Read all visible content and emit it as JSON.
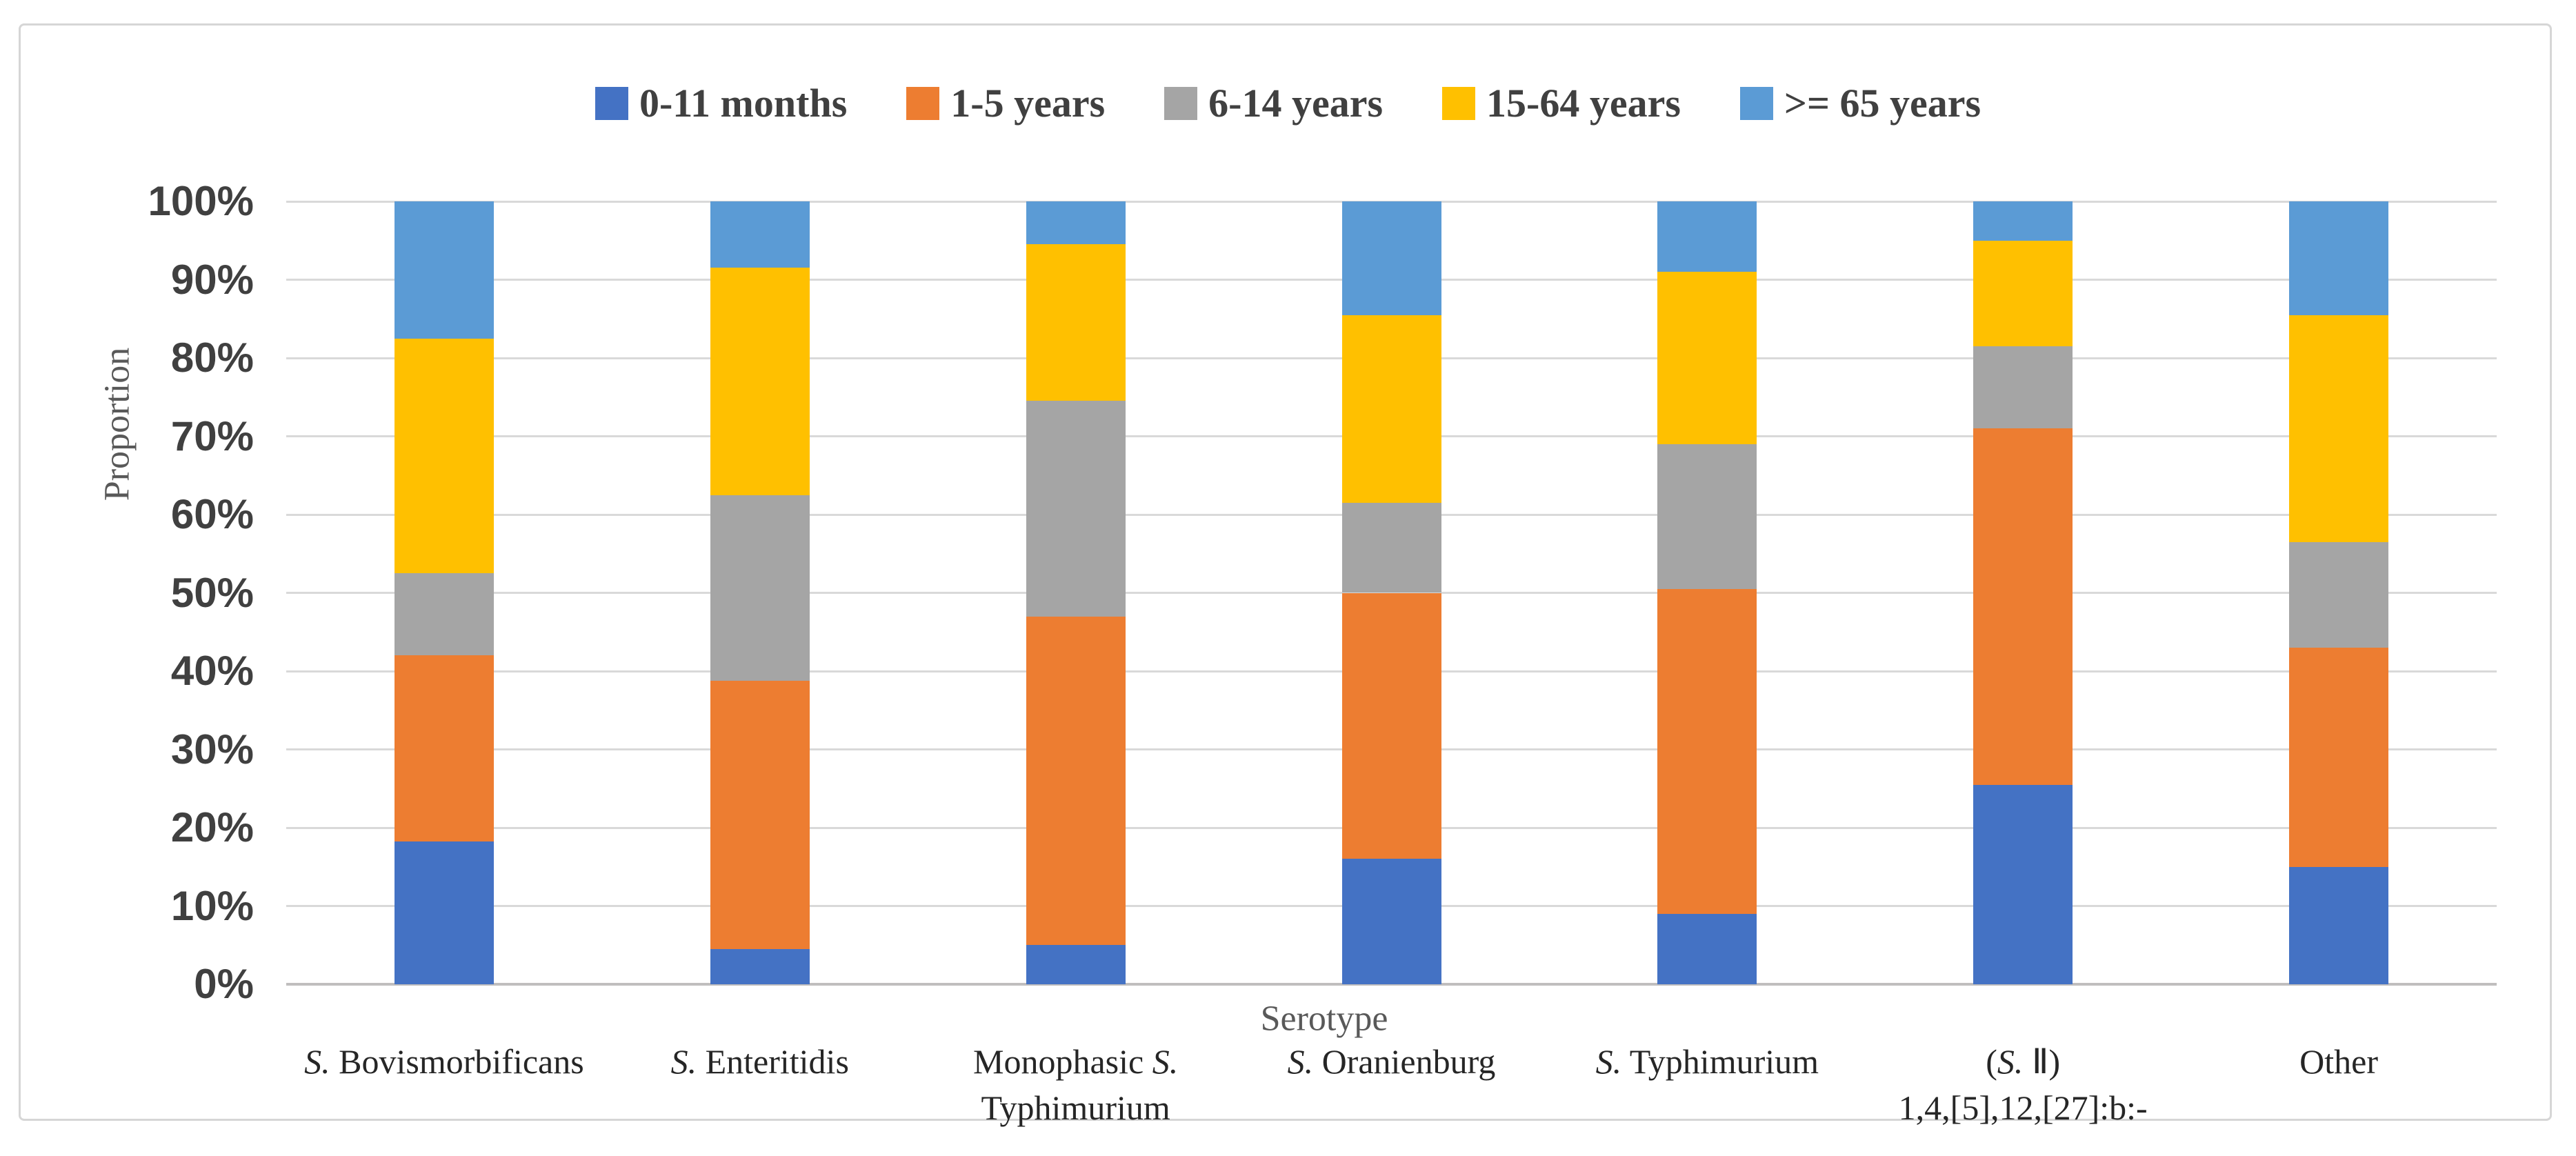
{
  "style": {
    "grid_color": "#D9D9D9",
    "axis_line_color": "#C0BEBE",
    "border_color": "#D6D6D6",
    "tick_text_color": "#404040",
    "label_text_color": "#262626",
    "axis_title_color": "#595959"
  },
  "chart_data": {
    "type": "bar",
    "subtype": "stacked-100-percent",
    "title": "",
    "xlabel": "Serotype",
    "ylabel": "Proportion",
    "ylim": [
      0,
      100
    ],
    "grid": true,
    "legend_position": "top",
    "y_ticks": [
      "100%",
      "90%",
      "80%",
      "70%",
      "60%",
      "50%",
      "40%",
      "30%",
      "20%",
      "10%",
      "0%"
    ],
    "categories": [
      {
        "label": "S. Bovismorbificans",
        "lines": [
          [
            {
              "t": "S.",
              "i": 1
            },
            {
              "t": " Bovismorbificans",
              "i": 0
            }
          ]
        ]
      },
      {
        "label": "S. Enteritidis",
        "lines": [
          [
            {
              "t": "S.",
              "i": 1
            },
            {
              "t": " Enteritidis",
              "i": 0
            }
          ]
        ]
      },
      {
        "label": "Monophasic S. Typhimurium",
        "lines": [
          [
            {
              "t": "Monophasic ",
              "i": 0
            },
            {
              "t": "S.",
              "i": 1
            }
          ],
          [
            {
              "t": "Typhimurium",
              "i": 0
            }
          ]
        ]
      },
      {
        "label": "S. Oranienburg",
        "lines": [
          [
            {
              "t": "S.",
              "i": 1
            },
            {
              "t": " Oranienburg",
              "i": 0
            }
          ]
        ]
      },
      {
        "label": "S. Typhimurium",
        "lines": [
          [
            {
              "t": "S.",
              "i": 1
            },
            {
              "t": " Typhimurium",
              "i": 0
            }
          ]
        ]
      },
      {
        "label": "(S. II) 1,4,[5],12,[27]:b:-",
        "lines": [
          [
            {
              "t": "(",
              "i": 0
            },
            {
              "t": "S.",
              "i": 1
            },
            {
              "t": " Ⅱ)",
              "i": 0
            }
          ],
          [
            {
              "t": "1,4,[5],12,[27]:b:-",
              "i": 0
            }
          ]
        ]
      },
      {
        "label": "Other",
        "lines": [
          [
            {
              "t": "Other",
              "i": 0
            }
          ]
        ]
      }
    ],
    "series": [
      {
        "name": "0-11 months",
        "color": "#4472C4",
        "values": [
          18.2,
          4.5,
          5.0,
          16.0,
          9.0,
          25.5,
          15.0
        ]
      },
      {
        "name": "1-5 years",
        "color": "#ED7D31",
        "values": [
          23.8,
          34.3,
          42.0,
          34.0,
          41.5,
          45.5,
          28.0
        ]
      },
      {
        "name": "6-14 years",
        "color": "#A5A5A5",
        "values": [
          10.5,
          23.7,
          27.5,
          11.5,
          18.5,
          10.5,
          13.5
        ]
      },
      {
        "name": "15-64 years",
        "color": "#FFC000",
        "values": [
          30.0,
          29.0,
          20.0,
          24.0,
          22.0,
          13.5,
          29.0
        ]
      },
      {
        "name": ">= 65 years",
        "color": "#5B9BD5",
        "values": [
          17.5,
          8.5,
          5.5,
          14.5,
          9.0,
          5.0,
          14.5
        ]
      }
    ]
  }
}
